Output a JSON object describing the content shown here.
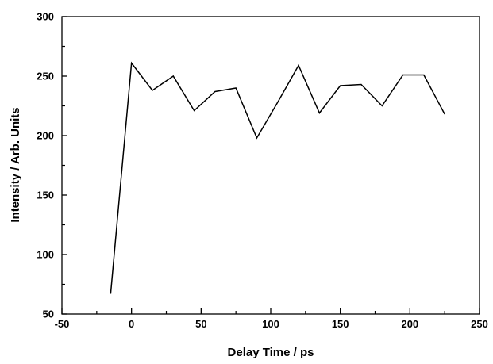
{
  "chart_data": {
    "type": "line",
    "title": "",
    "xlabel": "Delay Time / ps",
    "ylabel": "Intensity / Arb. Units",
    "xlim": [
      -50,
      250
    ],
    "ylim": [
      50,
      300
    ],
    "x_ticks": [
      "-50",
      "0",
      "50",
      "100",
      "150",
      "200",
      "250"
    ],
    "y_ticks": [
      "50",
      "100",
      "150",
      "200",
      "250",
      "300"
    ],
    "grid": false,
    "series": [
      {
        "color": "#000000",
        "x": [
          -15,
          0,
          15,
          30,
          45,
          60,
          75,
          90,
          105,
          120,
          135,
          150,
          165,
          180,
          195,
          210,
          225
        ],
        "y": [
          67,
          261,
          238,
          250,
          221,
          237,
          240,
          198,
          228,
          259,
          219,
          242,
          243,
          225,
          251,
          251,
          218
        ]
      }
    ]
  }
}
